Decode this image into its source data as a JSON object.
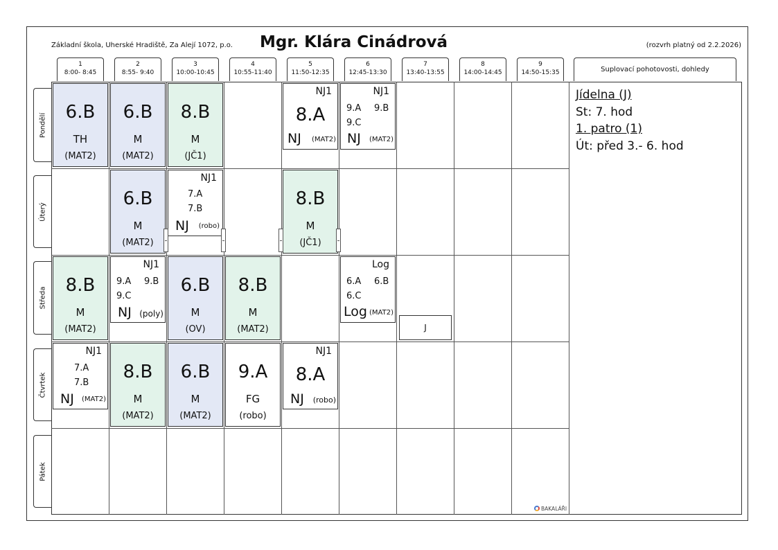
{
  "header": {
    "school": "Základní škola, Uherské Hradiště, Za Alejí 1072, p.o.",
    "teacher": "Mgr. Klára Cinádrová",
    "validity": "(rozvrh platný od 2.2.2026)"
  },
  "periods": [
    {
      "num": "1",
      "time": "8:00- 8:45"
    },
    {
      "num": "2",
      "time": "8:55- 9:40"
    },
    {
      "num": "3",
      "time": "10:00-10:45"
    },
    {
      "num": "4",
      "time": "10:55-11:40"
    },
    {
      "num": "5",
      "time": "11:50-12:35"
    },
    {
      "num": "6",
      "time": "12:45-13:30"
    },
    {
      "num": "7",
      "time": "13:40-13:55"
    },
    {
      "num": "8",
      "time": "14:00-14:45"
    },
    {
      "num": "9",
      "time": "14:50-15:35"
    }
  ],
  "supervision_header": "Suplovací pohotovosti, dohledy",
  "days": [
    "Pondělí",
    "Úterý",
    "Středa",
    "Čtvrtek",
    "Pátek"
  ],
  "colors": {
    "blue": "#e3e8f5",
    "green": "#e2f3ea"
  },
  "lessons": [
    {
      "cls": "6.B",
      "subj": "TH",
      "room": "(MAT2)"
    },
    {
      "cls": "6.B",
      "subj": "M",
      "room": "(MAT2)"
    },
    {
      "cls": "8.B",
      "subj": "M",
      "room": "(JČ1)"
    },
    {
      "cls": "6.B",
      "subj": "M",
      "room": "(MAT2)"
    },
    {
      "cls": "8.B",
      "subj": "M",
      "room": "(JČ1)"
    },
    {
      "cls": "8.B",
      "subj": "M",
      "room": "(MAT2)"
    },
    {
      "cls": "6.B",
      "subj": "M",
      "room": "(OV)"
    },
    {
      "cls": "8.B",
      "subj": "M",
      "room": "(MAT2)"
    },
    {
      "cls": "8.B",
      "subj": "M",
      "room": "(MAT2)"
    },
    {
      "cls": "6.B",
      "subj": "M",
      "room": "(MAT2)"
    },
    {
      "cls": "9.A",
      "subj": "FG",
      "room": "(robo)"
    }
  ],
  "groups": [
    {
      "group": "NJ1",
      "cls": "8.A",
      "subj": "NJ",
      "room": "(MAT2)"
    },
    {
      "group": "NJ1",
      "a": "9.A",
      "b": "9.B",
      "c": "9.C",
      "subj": "NJ",
      "room": "(MAT2)"
    },
    {
      "group": "NJ1",
      "a": "7.A",
      "b": "7.B",
      "subj": "NJ",
      "room": "(robo)"
    },
    {
      "group": "NJ1",
      "a": "9.A",
      "b": "9.B",
      "c": "9.C",
      "subj": "NJ",
      "room": "(poly)"
    },
    {
      "group": "Log",
      "a": "6.A",
      "b": "6.B",
      "c": "6.C",
      "subj": "Log",
      "room": "(MAT2)"
    },
    {
      "group": "NJ1",
      "a": "7.A",
      "b": "7.B",
      "subj": "NJ",
      "room": "(MAT2)"
    },
    {
      "group": "NJ1",
      "cls": "8.A",
      "subj": "NJ",
      "room": "(robo)"
    }
  ],
  "duty_box": "J",
  "duty": {
    "place1": "Jídelna (J)",
    "time1": "St: 7. hod",
    "place2": "1. patro (1)",
    "time2": "Út: před 3.- 6. hod"
  },
  "logo": "BAKALÁŘI"
}
